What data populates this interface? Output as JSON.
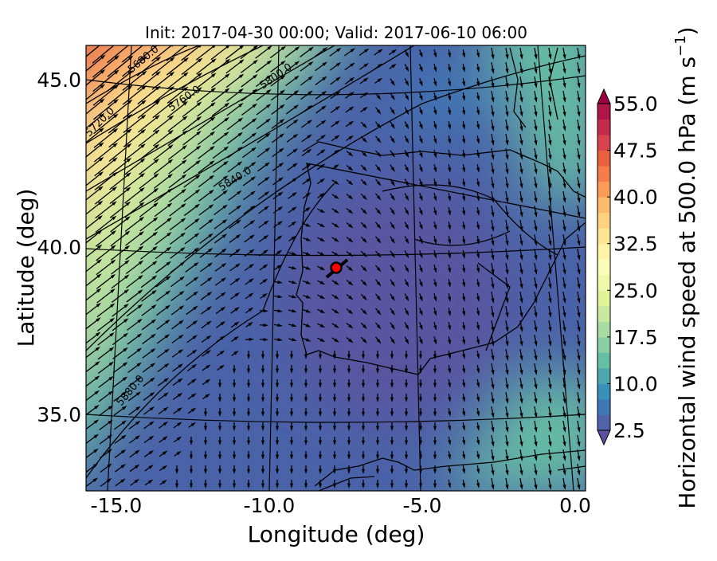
{
  "title": "Init: 2017-04-30 00:00; Valid: 2017-06-10 06:00",
  "xlabel": "Longitude (deg)",
  "ylabel": "Latitude (deg)",
  "x_ticks": [
    "-15.0",
    "-10.0",
    "-5.0",
    "0.0"
  ],
  "y_ticks": [
    "45.0",
    "40.0",
    "35.0"
  ],
  "colorbar": {
    "label": "Horizontal wind speed at 500.0 hPa (m s$^{-1}$)",
    "label_text": "Horizontal wind speed at 500.0 hPa (m s",
    "label_sup": "−1",
    "label_end": ")",
    "ticks": [
      "55.0",
      "47.5",
      "40.0",
      "32.5",
      "25.0",
      "17.5",
      "10.0",
      "2.5"
    ],
    "colors": [
      "#5e4fa2",
      "#4f62aa",
      "#3e79b5",
      "#3990ba",
      "#4ea6b0",
      "#66bea4",
      "#8acfa4",
      "#a9dca2",
      "#c8e99e",
      "#e2f398",
      "#f0f8a9",
      "#fbfdb8",
      "#fff4a8",
      "#fee593",
      "#fed27f",
      "#fdbb6c",
      "#fa9b58",
      "#f67d4a",
      "#e9603e",
      "#d8434e",
      "#c52b4b",
      "#b0154a",
      "#9e0142"
    ],
    "extend": "both",
    "min": 2.5,
    "max": 55.0
  },
  "contour_labels": [
    "5680.0",
    "5720.0",
    "5760.0",
    "5800.0",
    "5840.0",
    "5880.0"
  ],
  "marker": {
    "color": "#ff0000",
    "lon": -7.7,
    "lat": 39.4
  },
  "chart_data": {
    "type": "contour-map",
    "title": "Init: 2017-04-30 00:00; Valid: 2017-06-10 06:00",
    "xlabel": "Longitude (deg)",
    "ylabel": "Latitude (deg)",
    "xlim": [
      -16,
      0.3
    ],
    "ylim": [
      32.7,
      46.3
    ],
    "filled_variable": "wind speed 500 hPa",
    "color_levels": [
      2.5,
      55.0
    ],
    "geopotential_contours": [
      5680,
      5720,
      5760,
      5800,
      5840,
      5880
    ]
  }
}
